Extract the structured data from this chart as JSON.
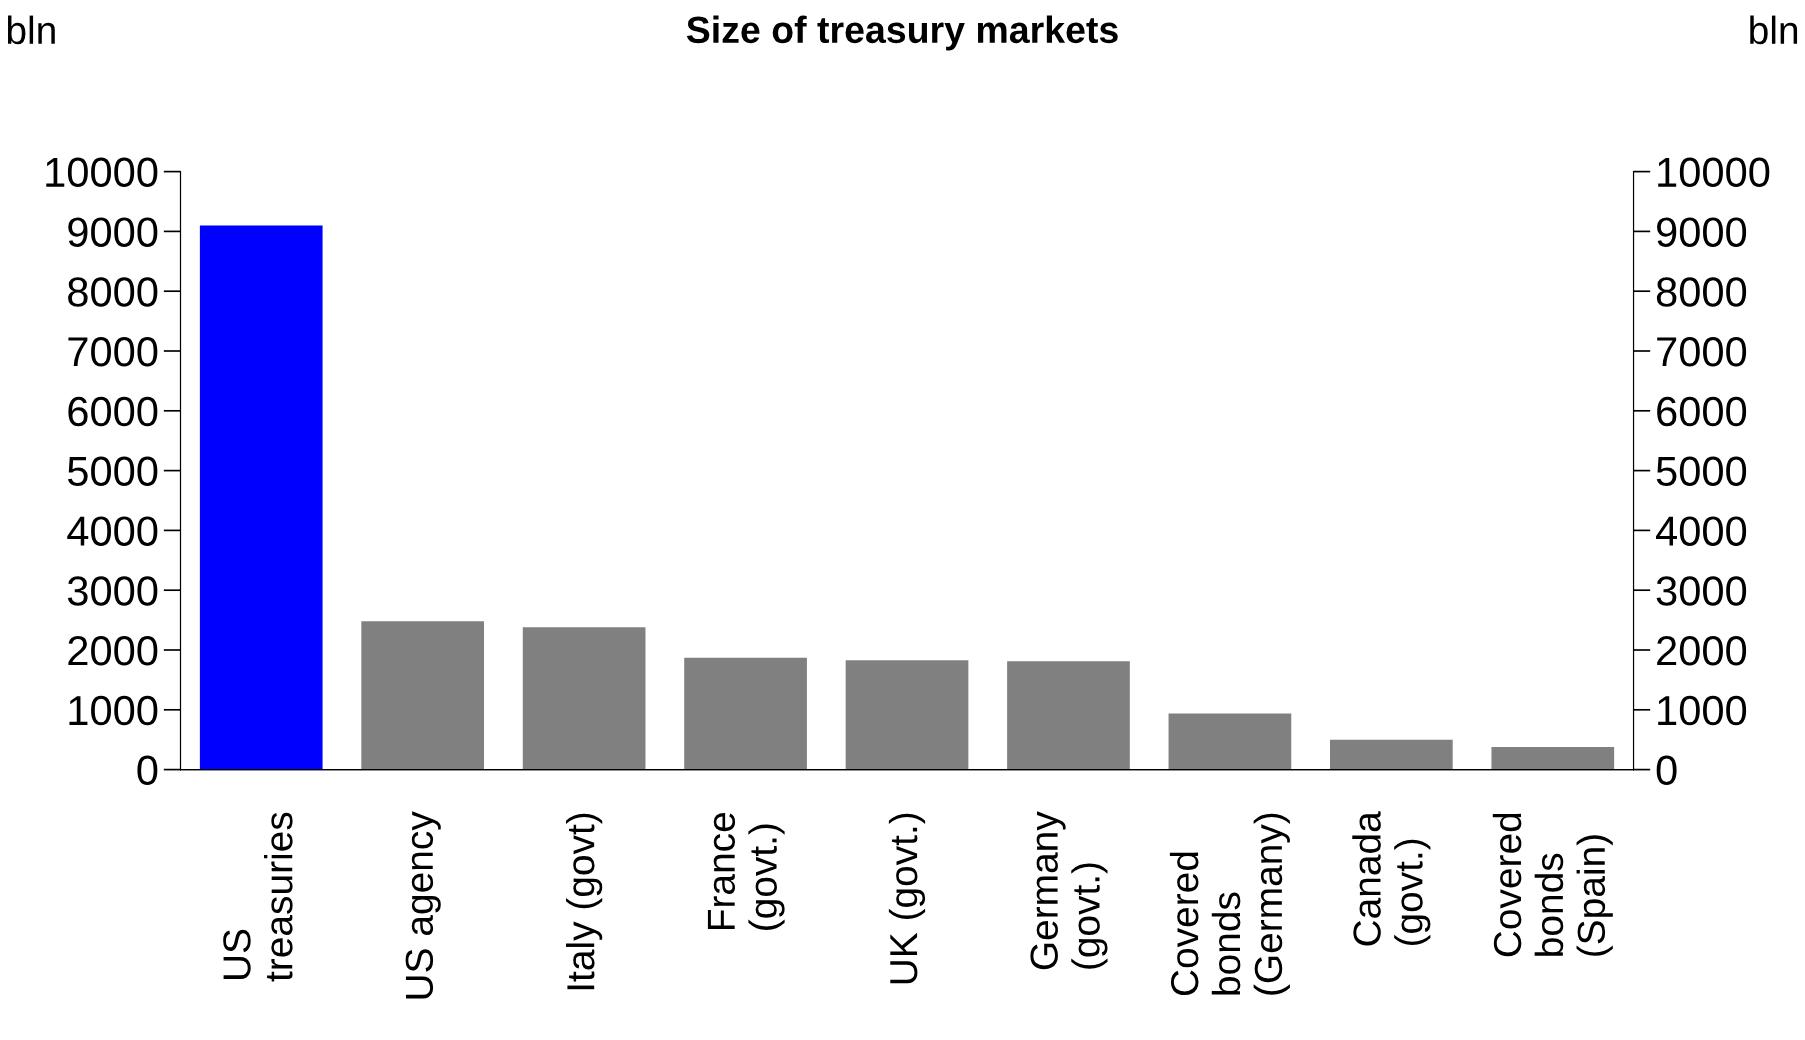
{
  "chart_data": {
    "type": "bar",
    "title": "Size of treasury markets",
    "ylabel": "bln",
    "y2label": "bln",
    "categories": [
      "US\ntreasuries",
      "US agency",
      "Italy (govt)",
      "France\n(govt.)",
      "UK (govt.)",
      "Germany\n(govt.)",
      "Covered\nbonds\n(Germany)",
      "Canada\n(govt.)",
      "Covered\nbonds\n(Spain)"
    ],
    "values": [
      9100,
      2480,
      2380,
      1870,
      1830,
      1810,
      940,
      500,
      380
    ],
    "colors": [
      "#0000ff",
      "#808080",
      "#808080",
      "#808080",
      "#808080",
      "#808080",
      "#808080",
      "#808080",
      "#808080"
    ],
    "ylim": [
      0,
      10000
    ],
    "yticks": [
      0,
      1000,
      2000,
      3000,
      4000,
      5000,
      6000,
      7000,
      8000,
      9000,
      10000
    ],
    "y2lim": [
      0,
      10000
    ],
    "y2ticks": [
      0,
      1000,
      2000,
      3000,
      4000,
      5000,
      6000,
      7000,
      8000,
      9000,
      10000
    ],
    "grid": false,
    "legend": false
  }
}
